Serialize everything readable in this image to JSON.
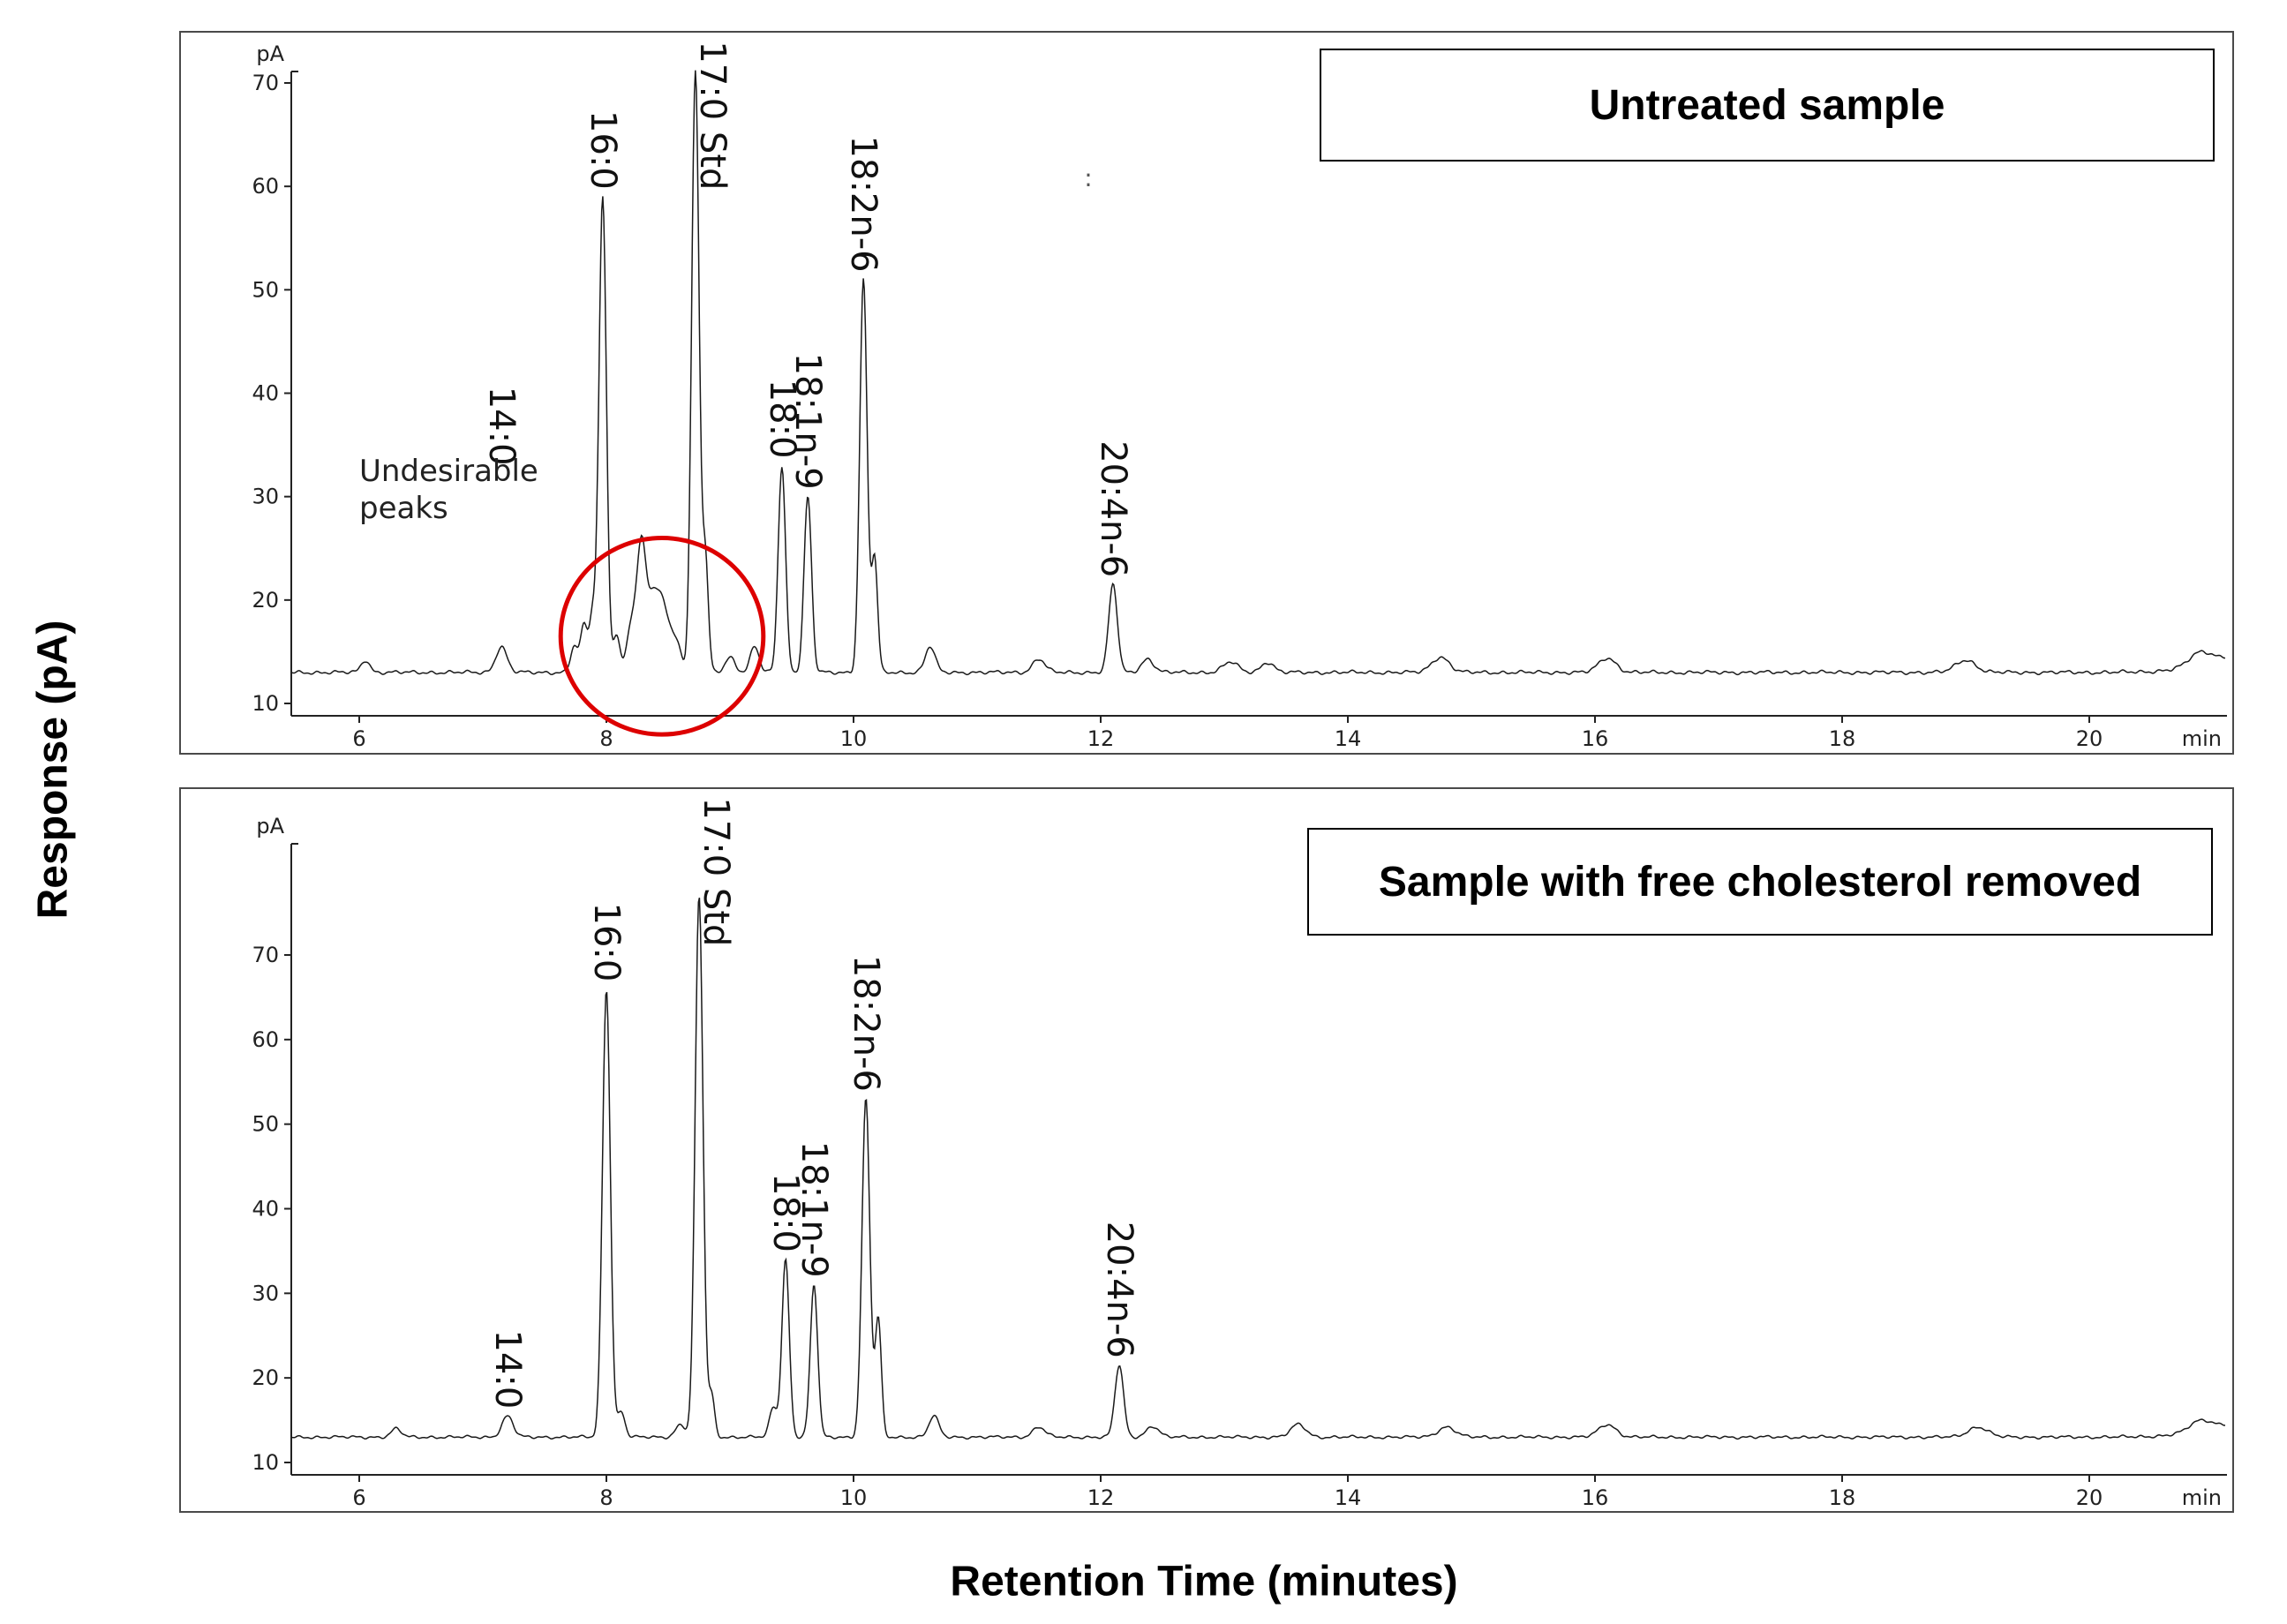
{
  "figure": {
    "ylabel": "Response (pA)",
    "xlabel": "Retention Time (minutes)"
  },
  "chart_data": [
    {
      "type": "line",
      "title": "Untreated sample",
      "xlabel": "Retention Time (minutes)",
      "ylabel": "Response (pA)",
      "y_axis_unit": "pA",
      "x_axis_unit": "min",
      "xlim": [
        5.45,
        21.1
      ],
      "ylim": [
        10,
        70
      ],
      "xticks": [
        6,
        8,
        10,
        12,
        14,
        16,
        18,
        20
      ],
      "yticks": [
        10,
        20,
        30,
        40,
        50,
        60,
        70
      ],
      "grid": false,
      "baseline_pA": 13,
      "peaks": [
        {
          "rt": 6.05,
          "apex_pA": 14.2,
          "sigma": 0.035
        },
        {
          "label": "14:0",
          "rt": 7.15,
          "apex_pA": 15.5,
          "sigma": 0.045,
          "label_bottom_pA": 33
        },
        {
          "rt": 7.74,
          "apex_pA": 15.5,
          "sigma": 0.03
        },
        {
          "rt": 7.82,
          "apex_pA": 17.5,
          "sigma": 0.028
        },
        {
          "rt": 7.89,
          "apex_pA": 18.5,
          "sigma": 0.026
        },
        {
          "label": "16:0",
          "rt": 7.97,
          "apex_pA": 59,
          "sigma": 0.03
        },
        {
          "rt": 8.08,
          "apex_pA": 16.5,
          "sigma": 0.03
        },
        {
          "rt": 8.2,
          "apex_pA": 17.5,
          "sigma": 0.035
        },
        {
          "rt": 8.28,
          "apex_pA": 23.5,
          "sigma": 0.035
        },
        {
          "rt": 8.37,
          "apex_pA": 20,
          "sigma": 0.06
        },
        {
          "rt": 8.47,
          "apex_pA": 18,
          "sigma": 0.05
        },
        {
          "rt": 8.57,
          "apex_pA": 15.5,
          "sigma": 0.04
        },
        {
          "label": "17:0 Std",
          "rt": 8.72,
          "apex_pA": 71,
          "sigma": 0.03
        },
        {
          "rt": 8.8,
          "apex_pA": 24,
          "sigma": 0.025
        },
        {
          "rt": 9.0,
          "apex_pA": 14.5,
          "sigma": 0.04
        },
        {
          "rt": 9.2,
          "apex_pA": 15.5,
          "sigma": 0.035
        },
        {
          "label": "18:0",
          "rt": 9.42,
          "apex_pA": 33,
          "sigma": 0.03
        },
        {
          "label": "18:1n-9",
          "rt": 9.63,
          "apex_pA": 30,
          "sigma": 0.03
        },
        {
          "label": "18:2n-6",
          "rt": 10.08,
          "apex_pA": 51,
          "sigma": 0.03
        },
        {
          "rt": 10.17,
          "apex_pA": 24,
          "sigma": 0.025
        },
        {
          "rt": 10.62,
          "apex_pA": 15.5,
          "sigma": 0.04
        },
        {
          "rt": 11.5,
          "apex_pA": 14.3,
          "sigma": 0.05
        },
        {
          "label": "20:4n-6",
          "rt": 12.1,
          "apex_pA": 21.5,
          "sigma": 0.035
        },
        {
          "rt": 12.38,
          "apex_pA": 14.3,
          "sigma": 0.05
        },
        {
          "rt": 13.05,
          "apex_pA": 14,
          "sigma": 0.06
        },
        {
          "rt": 13.35,
          "apex_pA": 14,
          "sigma": 0.05
        },
        {
          "rt": 14.75,
          "apex_pA": 14.5,
          "sigma": 0.07
        },
        {
          "rt": 16.1,
          "apex_pA": 14.4,
          "sigma": 0.07
        },
        {
          "rt": 19.0,
          "apex_pA": 14.2,
          "sigma": 0.08
        },
        {
          "rt": 20.9,
          "apex_pA": 14.3,
          "sigma": 0.09
        },
        {
          "rt": 21.7,
          "apex_pA": 16.5,
          "sigma": 0.45
        }
      ],
      "annotations": {
        "undesirable_lines": [
          "Undesirable",
          "peaks"
        ],
        "undesirable_x": 6.0,
        "undesirable_y_pA": 31.5,
        "ellipse": {
          "cx": 8.45,
          "cy_pA": 16.5,
          "rx": 0.82,
          "ry_pA": 9.5,
          "color": "#dd0000"
        },
        "stray_mark": {
          "text": ":",
          "x": 11.9,
          "y_pA": 60
        }
      }
    },
    {
      "type": "line",
      "title": "Sample with free cholesterol removed",
      "xlabel": "Retention Time (minutes)",
      "ylabel": "Response (pA)",
      "y_axis_unit": "pA",
      "x_axis_unit": "min",
      "xlim": [
        5.45,
        21.1
      ],
      "ylim": [
        10,
        70
      ],
      "xticks": [
        6,
        8,
        10,
        12,
        14,
        16,
        18,
        20
      ],
      "yticks": [
        10,
        20,
        30,
        40,
        50,
        60,
        70
      ],
      "grid": false,
      "baseline_pA": 13,
      "peaks": [
        {
          "rt": 6.3,
          "apex_pA": 14,
          "sigma": 0.04
        },
        {
          "label": "14:0",
          "rt": 7.2,
          "apex_pA": 15.5,
          "sigma": 0.045
        },
        {
          "label": "16:0",
          "rt": 8.0,
          "apex_pA": 66,
          "sigma": 0.032
        },
        {
          "rt": 8.12,
          "apex_pA": 16,
          "sigma": 0.03
        },
        {
          "rt": 8.6,
          "apex_pA": 14.5,
          "sigma": 0.04
        },
        {
          "label": "17:0 Std",
          "rt": 8.75,
          "apex_pA": 77,
          "sigma": 0.032
        },
        {
          "rt": 8.85,
          "apex_pA": 18,
          "sigma": 0.025
        },
        {
          "rt": 9.35,
          "apex_pA": 16.5,
          "sigma": 0.03
        },
        {
          "label": "18:0",
          "rt": 9.45,
          "apex_pA": 34,
          "sigma": 0.03
        },
        {
          "label": "18:1n-9",
          "rt": 9.68,
          "apex_pA": 31,
          "sigma": 0.03
        },
        {
          "label": "18:2n-6",
          "rt": 10.1,
          "apex_pA": 53,
          "sigma": 0.032
        },
        {
          "rt": 10.2,
          "apex_pA": 27,
          "sigma": 0.025
        },
        {
          "rt": 10.65,
          "apex_pA": 15.5,
          "sigma": 0.04
        },
        {
          "rt": 11.5,
          "apex_pA": 14.2,
          "sigma": 0.05
        },
        {
          "label": "20:4n-6",
          "rt": 12.15,
          "apex_pA": 21.5,
          "sigma": 0.035
        },
        {
          "rt": 12.42,
          "apex_pA": 14.3,
          "sigma": 0.05
        },
        {
          "rt": 13.6,
          "apex_pA": 14.5,
          "sigma": 0.06
        },
        {
          "rt": 14.8,
          "apex_pA": 14.2,
          "sigma": 0.07
        },
        {
          "rt": 16.1,
          "apex_pA": 14.5,
          "sigma": 0.07
        },
        {
          "rt": 19.1,
          "apex_pA": 14.2,
          "sigma": 0.08
        },
        {
          "rt": 20.9,
          "apex_pA": 14.3,
          "sigma": 0.09
        },
        {
          "rt": 21.7,
          "apex_pA": 16.5,
          "sigma": 0.45
        }
      ]
    }
  ]
}
